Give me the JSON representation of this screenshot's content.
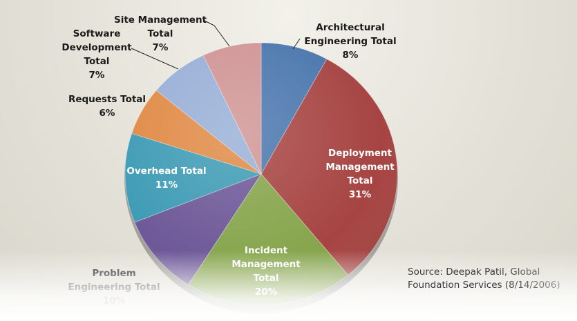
{
  "chart_data": {
    "type": "pie",
    "title": "",
    "slices": [
      {
        "label": "Architectural Engineering Total",
        "value": 8,
        "display": "8%",
        "color": "#4a76ad"
      },
      {
        "label": "Deployment Management Total",
        "value": 31,
        "display": "31%",
        "color": "#a64442"
      },
      {
        "label": "Incident Management Total",
        "value": 20,
        "display": "20%",
        "color": "#86a54c"
      },
      {
        "label": "Problem Engineering Total",
        "value": 10,
        "display": "10%",
        "color": "#6e5898"
      },
      {
        "label": "Overhead Total",
        "value": 11,
        "display": "11%",
        "color": "#3e9bb5"
      },
      {
        "label": "Requests Total",
        "value": 6,
        "display": "6%",
        "color": "#e08a45"
      },
      {
        "label": "Software Development Total",
        "value": 7,
        "display": "7%",
        "color": "#98afd6"
      },
      {
        "label": "Site Management Total",
        "value": 7,
        "display": "7%",
        "color": "#d09494"
      }
    ],
    "start_angle": "12 o'clock",
    "direction": "clockwise",
    "legend": "none"
  },
  "source": {
    "line1": "Source: Deepak Patil, Global",
    "line2": "Foundation Services (8/14/2006)"
  }
}
